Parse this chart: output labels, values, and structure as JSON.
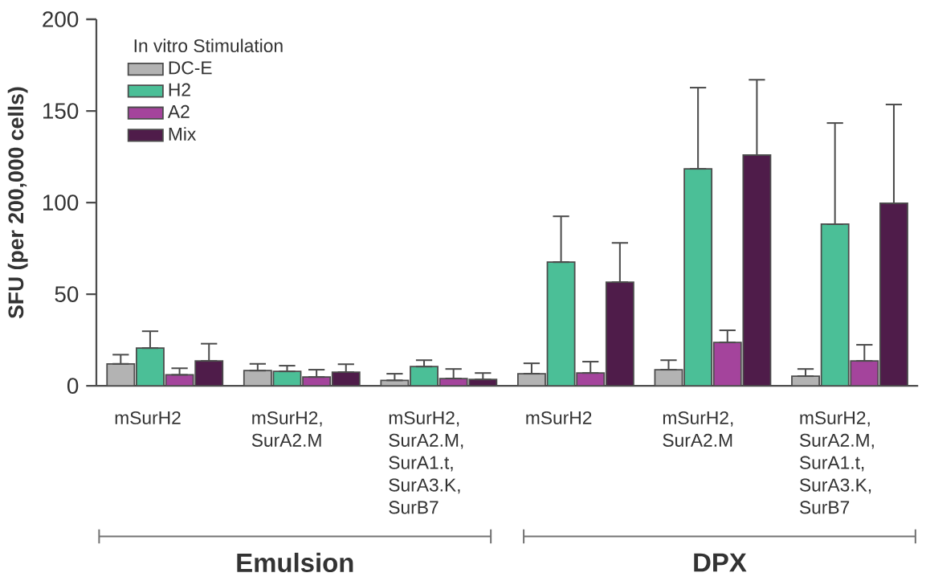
{
  "chart_data": {
    "type": "bar",
    "ylabel": "SFU (per 200,000 cells)",
    "legend_title": "In vitro Stimulation",
    "categories": [
      "mSurH2",
      "mSurH2, SurA2.M",
      "mSurH2, SurA2.M, SurA1.t, SurA3.K, SurB7",
      "mSurH2",
      "mSurH2, SurA2.M",
      "mSurH2, SurA2.M, SurA1.t, SurA3.K, SurB7"
    ],
    "series": [
      {
        "name": "DC-E",
        "color": "#b3b3b3",
        "values": [
          12,
          8.3,
          3,
          6.6,
          8.8,
          5.3
        ],
        "errors": [
          [
            12,
            17
          ],
          [
            8.3,
            12
          ],
          [
            3,
            6.6
          ],
          [
            6.6,
            12.3
          ],
          [
            8.8,
            14
          ],
          [
            5.3,
            9.2
          ]
        ]
      },
      {
        "name": "H2",
        "color": "#4bbf97",
        "values": [
          20.6,
          7.9,
          10.5,
          67.5,
          118.4,
          88.2
        ],
        "errors": [
          [
            20.6,
            29.8
          ],
          [
            7.9,
            11
          ],
          [
            10.5,
            14
          ],
          [
            67.5,
            92.5
          ],
          [
            118.4,
            162.7
          ],
          [
            88.2,
            143.4
          ]
        ]
      },
      {
        "name": "A2",
        "color": "#a4449c",
        "values": [
          6,
          4.8,
          4,
          7,
          23.7,
          13.6
        ],
        "errors": [
          [
            6,
            9.6
          ],
          [
            4.8,
            8.8
          ],
          [
            4,
            9.2
          ],
          [
            7,
            13.2
          ],
          [
            23.7,
            30.3
          ],
          [
            13.6,
            22.4
          ]
        ]
      },
      {
        "name": "Mix",
        "color": "#4f1c4a",
        "values": [
          13.6,
          7.5,
          3.5,
          56.6,
          125.9,
          99.6
        ],
        "errors": [
          [
            13.6,
            23
          ],
          [
            7.5,
            11.8
          ],
          [
            3.5,
            7
          ],
          [
            56.6,
            78
          ],
          [
            125.9,
            167
          ],
          [
            99.6,
            153.5
          ]
        ]
      }
    ],
    "ylim": [
      0,
      200
    ],
    "yticks": [
      0,
      50,
      100,
      150,
      200
    ],
    "grid": false,
    "legend": "top left",
    "annotations": [
      "Emulsion",
      "DPX"
    ]
  }
}
